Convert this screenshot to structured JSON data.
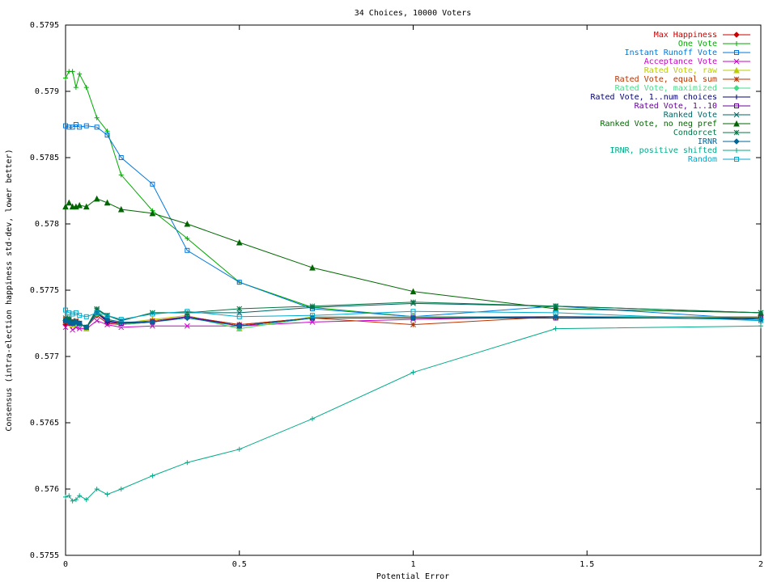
{
  "chart_data": {
    "type": "line",
    "title": "34 Choices, 10000 Voters",
    "xlabel": "Potential Error",
    "ylabel": "Consensus (intra-election happiness std-dev, lower better)",
    "xlim": [
      0,
      2
    ],
    "ylim": [
      0.5755,
      0.5795
    ],
    "x_ticks": [
      "0",
      "0.5",
      "1",
      "1.5",
      "2"
    ],
    "y_ticks": [
      "0.5755",
      "0.576",
      "0.5765",
      "0.577",
      "0.5775",
      "0.578",
      "0.5785",
      "0.579",
      "0.5795"
    ],
    "x_tick_values": [
      0,
      0.5,
      1,
      1.5,
      2
    ],
    "y_tick_values": [
      0.5755,
      0.576,
      0.5765,
      0.577,
      0.5775,
      0.578,
      0.5785,
      0.579,
      0.5795
    ],
    "grid": false,
    "legend_position": "top-right",
    "x": [
      0,
      0.01,
      0.02,
      0.03,
      0.04,
      0.06,
      0.09,
      0.12,
      0.16,
      0.25,
      0.35,
      0.5,
      0.71,
      1,
      1.41,
      2
    ],
    "series": [
      {
        "name": "Max Happiness",
        "color": "#cc0000",
        "marker": "diamond",
        "values": [
          0.57724,
          0.57725,
          0.57726,
          0.57725,
          0.57724,
          0.57722,
          0.57731,
          0.57725,
          0.57724,
          0.57726,
          0.5773,
          0.57724,
          0.57729,
          0.57729,
          0.5773,
          0.57728
        ]
      },
      {
        "name": "One Vote",
        "color": "#00aa00",
        "marker": "plus",
        "values": [
          0.5791,
          0.57915,
          0.57915,
          0.57903,
          0.57913,
          0.57903,
          0.5788,
          0.5787,
          0.57837,
          0.5781,
          0.57789,
          0.57756,
          0.57737,
          0.5773,
          0.5773,
          0.5773
        ]
      },
      {
        "name": "Instant Runoff Vote",
        "color": "#0077dd",
        "marker": "square",
        "values": [
          0.57874,
          0.57873,
          0.57873,
          0.57875,
          0.57873,
          0.57874,
          0.57873,
          0.57867,
          0.5785,
          0.5783,
          0.5778,
          0.57756,
          0.57736,
          0.5773,
          0.57738,
          0.57728
        ]
      },
      {
        "name": "Acceptance Vote",
        "color": "#cc00cc",
        "marker": "x",
        "values": [
          0.57722,
          0.57725,
          0.5772,
          0.57722,
          0.57721,
          0.57721,
          0.57727,
          0.57724,
          0.57722,
          0.57723,
          0.57723,
          0.57723,
          0.57726,
          0.57728,
          0.5773,
          0.57729
        ]
      },
      {
        "name": "Rated Vote, raw",
        "color": "#bbcc00",
        "marker": "triangle",
        "values": [
          0.57727,
          0.57728,
          0.57724,
          0.57726,
          0.57725,
          0.57721,
          0.57734,
          0.57728,
          0.57725,
          0.57728,
          0.57731,
          0.57721,
          0.5773,
          0.5773,
          0.5773,
          0.5773
        ]
      },
      {
        "name": "Rated Vote, equal sum",
        "color": "#bb3300",
        "marker": "star",
        "values": [
          0.57728,
          0.57727,
          0.57726,
          0.57727,
          0.57725,
          0.57722,
          0.57733,
          0.57727,
          0.57725,
          0.57727,
          0.5773,
          0.57724,
          0.57729,
          0.57724,
          0.5773,
          0.57729
        ]
      },
      {
        "name": "Rated Vote, maximized",
        "color": "#44dd88",
        "marker": "diamond",
        "values": [
          0.57727,
          0.57726,
          0.57725,
          0.57725,
          0.57724,
          0.57722,
          0.57732,
          0.57727,
          0.57724,
          0.57726,
          0.5773,
          0.57721,
          0.57729,
          0.57729,
          0.5773,
          0.57729
        ]
      },
      {
        "name": "Rated Vote, 1..num choices",
        "color": "#000077",
        "marker": "plus",
        "values": [
          0.57726,
          0.57726,
          0.57725,
          0.57726,
          0.57725,
          0.57722,
          0.57733,
          0.57726,
          0.57725,
          0.57726,
          0.5773,
          0.57723,
          0.57729,
          0.57729,
          0.57729,
          0.57729
        ]
      },
      {
        "name": "Rated Vote, 1..10",
        "color": "#660099",
        "marker": "square",
        "values": [
          0.57727,
          0.57727,
          0.57725,
          0.57726,
          0.57725,
          0.57722,
          0.57733,
          0.57727,
          0.57725,
          0.57726,
          0.5773,
          0.57723,
          0.57729,
          0.57729,
          0.57729,
          0.57729
        ]
      },
      {
        "name": "Ranked Vote",
        "color": "#006666",
        "marker": "x",
        "values": [
          0.57729,
          0.57728,
          0.57727,
          0.57726,
          0.57725,
          0.57722,
          0.57735,
          0.57731,
          0.57727,
          0.57733,
          0.57733,
          0.57733,
          0.57737,
          0.5774,
          0.57738,
          0.57733
        ]
      },
      {
        "name": "Ranked Vote, no neg pref",
        "color": "#006600",
        "marker": "triangle",
        "values": [
          0.57813,
          0.57816,
          0.57813,
          0.57813,
          0.57814,
          0.57813,
          0.57819,
          0.57816,
          0.57811,
          0.57808,
          0.578,
          0.57786,
          0.57767,
          0.57749,
          0.57736,
          0.57733
        ]
      },
      {
        "name": "Condorcet",
        "color": "#007744",
        "marker": "star",
        "values": [
          0.57727,
          0.57729,
          0.57725,
          0.57726,
          0.57725,
          0.57722,
          0.57736,
          0.57731,
          0.57727,
          0.57733,
          0.57733,
          0.57736,
          0.57738,
          0.57741,
          0.57738,
          0.57733
        ]
      },
      {
        "name": "IRNR",
        "color": "#006699",
        "marker": "diamond",
        "values": [
          0.57727,
          0.57726,
          0.57725,
          0.57726,
          0.57725,
          0.57722,
          0.57733,
          0.57728,
          0.57726,
          0.57726,
          0.57729,
          0.57723,
          0.57729,
          0.57729,
          0.5773,
          0.57728
        ]
      },
      {
        "name": "IRNR, positive shifted",
        "color": "#00aa88",
        "marker": "plus",
        "values": [
          0.57594,
          0.57595,
          0.57591,
          0.57592,
          0.57595,
          0.57592,
          0.576,
          0.57596,
          0.576,
          0.5761,
          0.5762,
          0.5763,
          0.57653,
          0.57688,
          0.57721,
          0.57723
        ]
      },
      {
        "name": "Random",
        "color": "#00aacc",
        "marker": "square",
        "values": [
          0.57735,
          0.57733,
          0.57732,
          0.57733,
          0.57731,
          0.5773,
          0.57733,
          0.57731,
          0.57728,
          0.57732,
          0.57734,
          0.5773,
          0.57731,
          0.57734,
          0.57733,
          0.57727
        ]
      }
    ]
  }
}
